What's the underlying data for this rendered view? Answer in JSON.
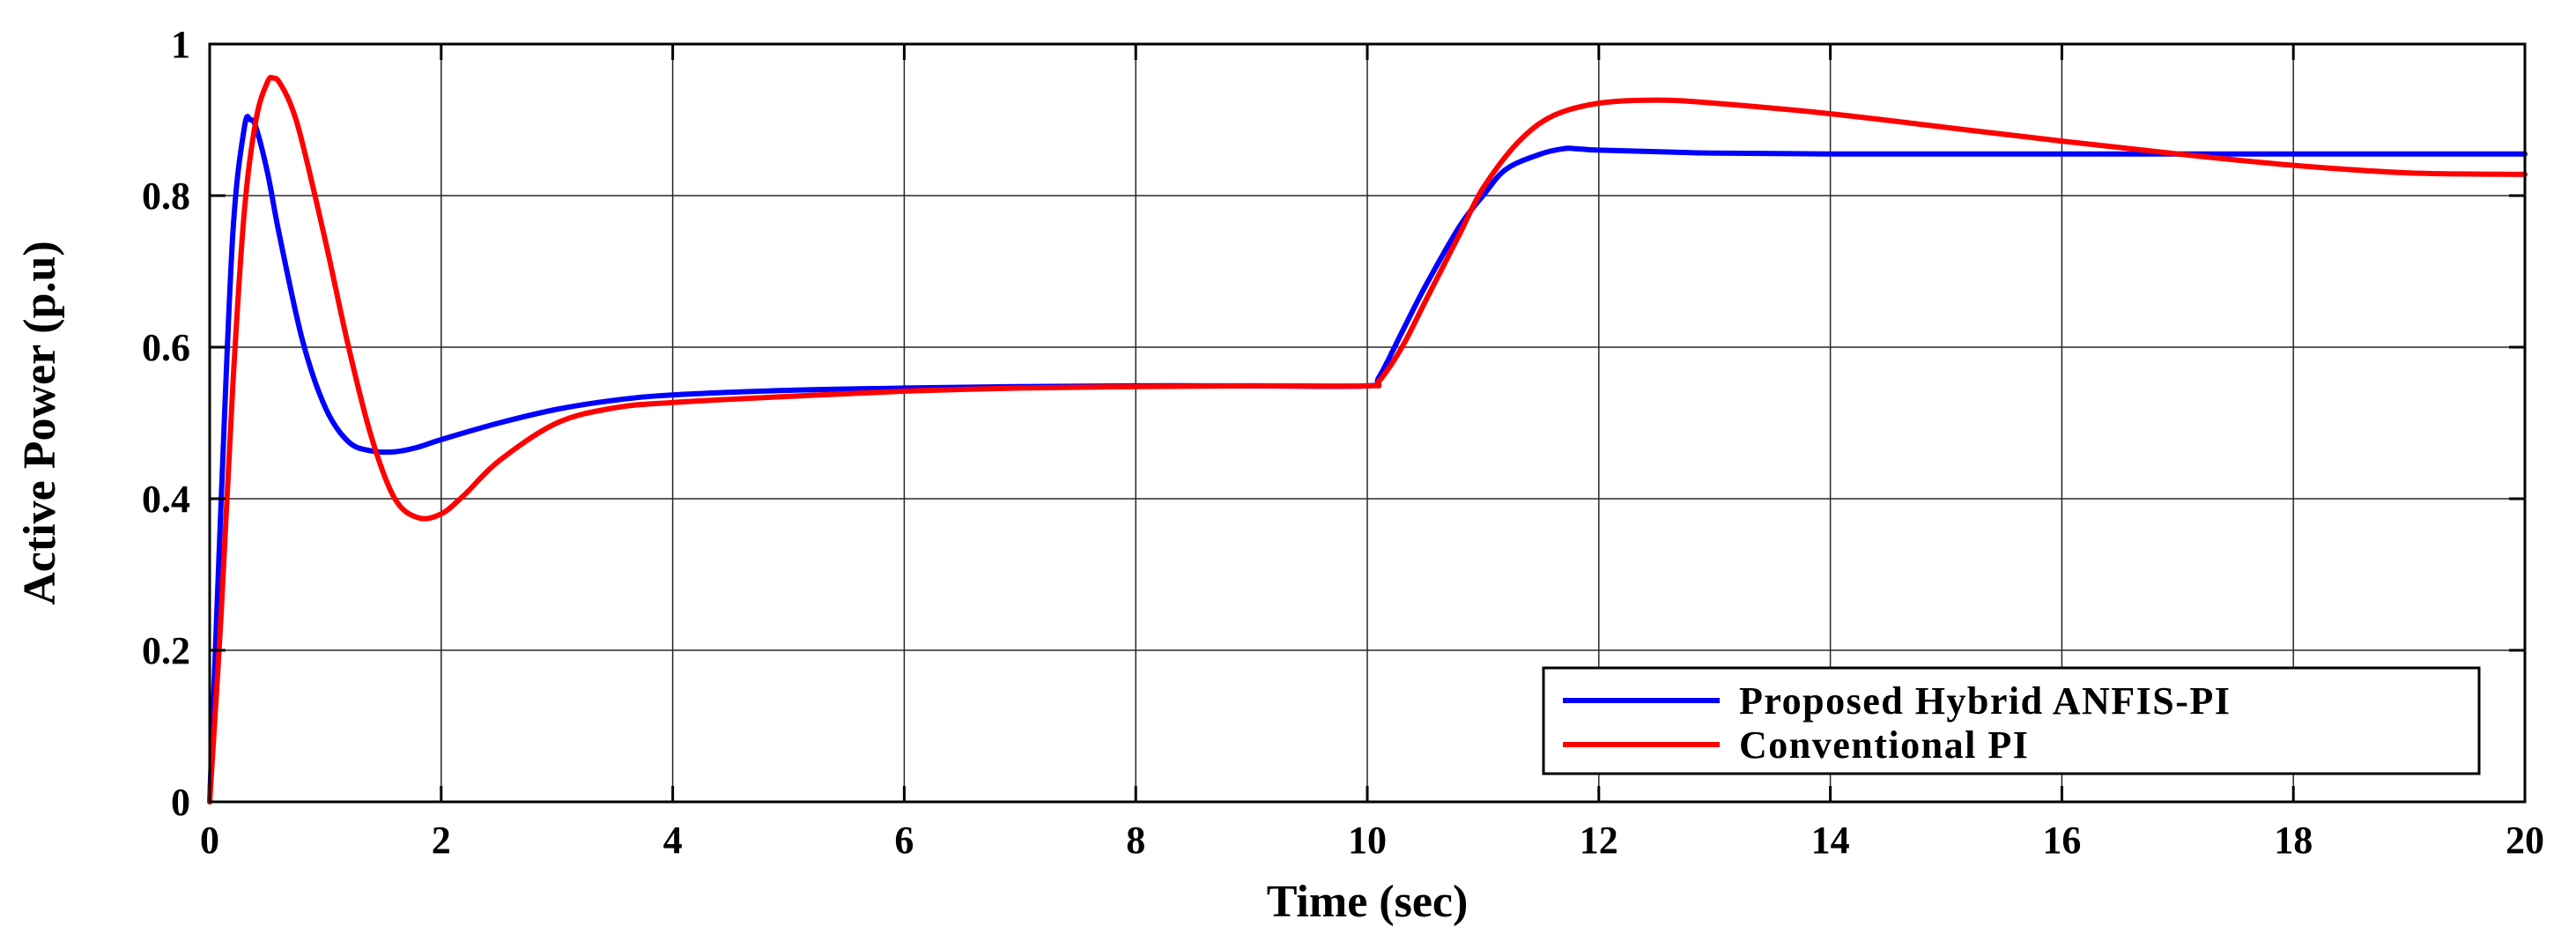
{
  "chart_data": {
    "type": "line",
    "title": "",
    "xlabel": "Time (sec)",
    "ylabel": "Active Power (p.u)",
    "xlim": [
      0,
      20
    ],
    "ylim": [
      0,
      1
    ],
    "x_ticks": [
      0,
      2,
      4,
      6,
      8,
      10,
      12,
      14,
      16,
      18,
      20
    ],
    "x_tick_labels": [
      "0",
      "2",
      "4",
      "6",
      "8",
      "10",
      "12",
      "14",
      "16",
      "18",
      "20"
    ],
    "y_ticks": [
      0,
      0.2,
      0.4,
      0.6,
      0.8,
      1
    ],
    "y_tick_labels": [
      "0",
      "0.2",
      "0.4",
      "0.6",
      "0.8",
      "1"
    ],
    "grid": true,
    "legend_position": "bottom-right",
    "series": [
      {
        "name": "Proposed Hybrid ANFIS-PI",
        "color": "#0000ff",
        "x": [
          0,
          0.1,
          0.2,
          0.3,
          0.35,
          0.4,
          0.5,
          0.6,
          0.8,
          1.0,
          1.2,
          1.4,
          1.6,
          1.8,
          2.0,
          2.5,
          3.0,
          3.5,
          4.0,
          5.0,
          6.0,
          7.0,
          8.0,
          9.0,
          10.0,
          10.1,
          10.3,
          10.5,
          10.8,
          11.0,
          11.2,
          11.5,
          11.7,
          11.8,
          12.0,
          12.5,
          13.0,
          14.0,
          16.0,
          18.0,
          20.0
        ],
        "y": [
          0,
          0.4,
          0.75,
          0.89,
          0.9,
          0.89,
          0.83,
          0.75,
          0.61,
          0.52,
          0.475,
          0.463,
          0.462,
          0.468,
          0.478,
          0.5,
          0.518,
          0.53,
          0.537,
          0.543,
          0.546,
          0.548,
          0.549,
          0.549,
          0.549,
          0.56,
          0.62,
          0.68,
          0.76,
          0.8,
          0.835,
          0.855,
          0.862,
          0.862,
          0.86,
          0.858,
          0.856,
          0.855,
          0.855,
          0.855,
          0.855
        ]
      },
      {
        "name": "Conventional PI",
        "color": "#ff0000",
        "x": [
          0,
          0.1,
          0.2,
          0.3,
          0.4,
          0.5,
          0.55,
          0.6,
          0.7,
          0.8,
          1.0,
          1.2,
          1.4,
          1.6,
          1.8,
          2.0,
          2.2,
          2.5,
          3.0,
          3.5,
          4.0,
          5.0,
          6.0,
          7.0,
          8.0,
          9.0,
          10.0,
          10.1,
          10.3,
          10.5,
          10.8,
          11.0,
          11.3,
          11.6,
          12.0,
          12.5,
          13.0,
          14.0,
          15.0,
          16.0,
          17.0,
          18.0,
          19.0,
          20.0
        ],
        "y": [
          0,
          0.25,
          0.55,
          0.78,
          0.9,
          0.95,
          0.955,
          0.95,
          0.92,
          0.87,
          0.74,
          0.6,
          0.48,
          0.4,
          0.375,
          0.38,
          0.405,
          0.45,
          0.5,
          0.52,
          0.527,
          0.535,
          0.542,
          0.546,
          0.548,
          0.549,
          0.549,
          0.555,
          0.6,
          0.66,
          0.75,
          0.81,
          0.87,
          0.905,
          0.922,
          0.926,
          0.922,
          0.908,
          0.89,
          0.872,
          0.855,
          0.84,
          0.83,
          0.828
        ]
      }
    ]
  }
}
